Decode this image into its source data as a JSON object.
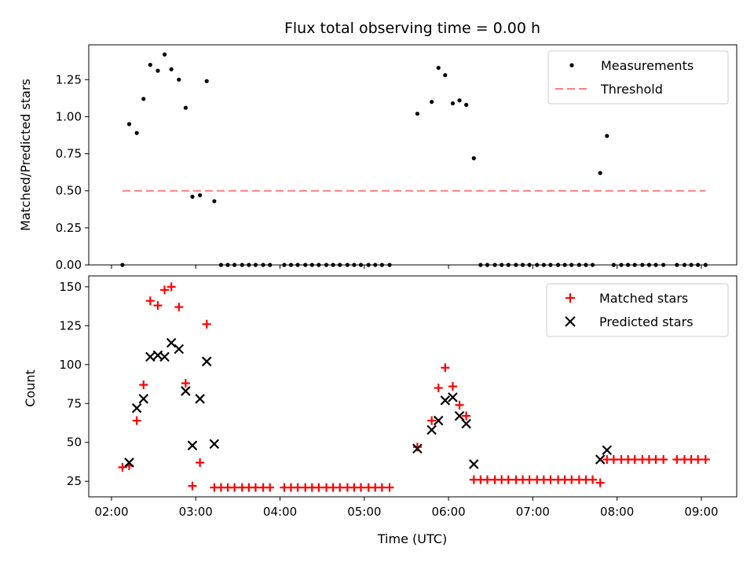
{
  "title": "Flux total observing time = 0.00 h",
  "xlabel": "Time (UTC)",
  "x_tick_labels": [
    "02:00",
    "03:00",
    "04:00",
    "05:00",
    "06:00",
    "07:00",
    "08:00",
    "09:00"
  ],
  "colors": {
    "matched": "#ff0000",
    "predicted": "#000000",
    "threshold": "#ff7f7f",
    "measurements": "#000000"
  },
  "chart_data": [
    {
      "type": "scatter",
      "title": "Flux total observing time = 0.00 h",
      "xlabel": "",
      "ylabel": "Matched/Predicted stars",
      "x_unit": "hours UTC",
      "xlim": [
        1.73,
        9.42
      ],
      "ylim": [
        0,
        1.485
      ],
      "y_tick_labels": [
        "0.00",
        "0.25",
        "0.50",
        "0.75",
        "1.00",
        "1.25"
      ],
      "legend": {
        "position": "top-right",
        "entries": [
          "Measurements",
          "Threshold"
        ]
      },
      "threshold": {
        "name": "Threshold",
        "x_range": [
          2.13,
          9.05
        ],
        "y": 0.5
      },
      "series": [
        {
          "name": "Measurements",
          "points": [
            [
              2.13,
              0.0
            ],
            [
              2.21,
              0.95
            ],
            [
              2.3,
              0.89
            ],
            [
              2.38,
              1.12
            ],
            [
              2.46,
              1.35
            ],
            [
              2.55,
              1.31
            ],
            [
              2.63,
              1.42
            ],
            [
              2.71,
              1.32
            ],
            [
              2.8,
              1.25
            ],
            [
              2.88,
              1.06
            ],
            [
              2.96,
              0.46
            ],
            [
              3.05,
              0.47
            ],
            [
              3.13,
              1.24
            ],
            [
              3.22,
              0.43
            ],
            [
              3.3,
              0.0
            ],
            [
              3.38,
              0.0
            ],
            [
              3.46,
              0.0
            ],
            [
              3.55,
              0.0
            ],
            [
              3.63,
              0.0
            ],
            [
              3.71,
              0.0
            ],
            [
              3.8,
              0.0
            ],
            [
              3.88,
              0.0
            ],
            [
              4.05,
              0.0
            ],
            [
              4.13,
              0.0
            ],
            [
              4.21,
              0.0
            ],
            [
              4.3,
              0.0
            ],
            [
              4.38,
              0.0
            ],
            [
              4.46,
              0.0
            ],
            [
              4.55,
              0.0
            ],
            [
              4.63,
              0.0
            ],
            [
              4.71,
              0.0
            ],
            [
              4.8,
              0.0
            ],
            [
              4.88,
              0.0
            ],
            [
              4.96,
              0.0
            ],
            [
              5.05,
              0.0
            ],
            [
              5.13,
              0.0
            ],
            [
              5.21,
              0.0
            ],
            [
              5.3,
              0.0
            ],
            [
              5.63,
              1.02
            ],
            [
              5.8,
              1.1
            ],
            [
              5.88,
              1.33
            ],
            [
              5.96,
              1.28
            ],
            [
              6.05,
              1.09
            ],
            [
              6.13,
              1.11
            ],
            [
              6.21,
              1.08
            ],
            [
              6.3,
              0.72
            ],
            [
              6.38,
              0.0
            ],
            [
              6.46,
              0.0
            ],
            [
              6.55,
              0.0
            ],
            [
              6.63,
              0.0
            ],
            [
              6.71,
              0.0
            ],
            [
              6.8,
              0.0
            ],
            [
              6.88,
              0.0
            ],
            [
              6.96,
              0.0
            ],
            [
              7.05,
              0.0
            ],
            [
              7.13,
              0.0
            ],
            [
              7.21,
              0.0
            ],
            [
              7.3,
              0.0
            ],
            [
              7.38,
              0.0
            ],
            [
              7.46,
              0.0
            ],
            [
              7.55,
              0.0
            ],
            [
              7.63,
              0.0
            ],
            [
              7.71,
              0.0
            ],
            [
              7.8,
              0.62
            ],
            [
              7.88,
              0.87
            ],
            [
              7.96,
              0.0
            ],
            [
              8.05,
              0.0
            ],
            [
              8.13,
              0.0
            ],
            [
              8.21,
              0.0
            ],
            [
              8.3,
              0.0
            ],
            [
              8.38,
              0.0
            ],
            [
              8.46,
              0.0
            ],
            [
              8.55,
              0.0
            ],
            [
              8.71,
              0.0
            ],
            [
              8.8,
              0.0
            ],
            [
              8.88,
              0.0
            ],
            [
              8.96,
              0.0
            ],
            [
              9.05,
              0.0
            ]
          ]
        }
      ]
    },
    {
      "type": "scatter",
      "title": "",
      "xlabel": "Time (UTC)",
      "ylabel": "Count",
      "x_unit": "hours UTC",
      "xlim": [
        1.73,
        9.42
      ],
      "ylim": [
        15,
        157
      ],
      "y_tick_labels": [
        "25",
        "50",
        "75",
        "100",
        "125",
        "150"
      ],
      "legend": {
        "position": "top-right",
        "entries": [
          "Matched stars",
          "Predicted stars"
        ]
      },
      "series": [
        {
          "name": "Matched stars",
          "marker": "plus",
          "points": [
            [
              2.13,
              34
            ],
            [
              2.21,
              35
            ],
            [
              2.3,
              64
            ],
            [
              2.38,
              87
            ],
            [
              2.46,
              141
            ],
            [
              2.55,
              138
            ],
            [
              2.63,
              148
            ],
            [
              2.71,
              150
            ],
            [
              2.8,
              137
            ],
            [
              2.88,
              88
            ],
            [
              2.96,
              22
            ],
            [
              3.05,
              37
            ],
            [
              3.13,
              126
            ],
            [
              3.22,
              21
            ],
            [
              3.3,
              21
            ],
            [
              3.38,
              21
            ],
            [
              3.46,
              21
            ],
            [
              3.55,
              21
            ],
            [
              3.63,
              21
            ],
            [
              3.71,
              21
            ],
            [
              3.8,
              21
            ],
            [
              3.88,
              21
            ],
            [
              4.05,
              21
            ],
            [
              4.13,
              21
            ],
            [
              4.21,
              21
            ],
            [
              4.3,
              21
            ],
            [
              4.38,
              21
            ],
            [
              4.46,
              21
            ],
            [
              4.55,
              21
            ],
            [
              4.63,
              21
            ],
            [
              4.71,
              21
            ],
            [
              4.8,
              21
            ],
            [
              4.88,
              21
            ],
            [
              4.96,
              21
            ],
            [
              5.05,
              21
            ],
            [
              5.13,
              21
            ],
            [
              5.21,
              21
            ],
            [
              5.3,
              21
            ],
            [
              5.63,
              47
            ],
            [
              5.8,
              64
            ],
            [
              5.88,
              85
            ],
            [
              5.96,
              98
            ],
            [
              6.05,
              86
            ],
            [
              6.13,
              74
            ],
            [
              6.21,
              67
            ],
            [
              6.3,
              26
            ],
            [
              6.38,
              26
            ],
            [
              6.46,
              26
            ],
            [
              6.55,
              26
            ],
            [
              6.63,
              26
            ],
            [
              6.71,
              26
            ],
            [
              6.8,
              26
            ],
            [
              6.88,
              26
            ],
            [
              6.96,
              26
            ],
            [
              7.05,
              26
            ],
            [
              7.13,
              26
            ],
            [
              7.21,
              26
            ],
            [
              7.3,
              26
            ],
            [
              7.38,
              26
            ],
            [
              7.46,
              26
            ],
            [
              7.55,
              26
            ],
            [
              7.63,
              26
            ],
            [
              7.71,
              26
            ],
            [
              7.8,
              24
            ],
            [
              7.88,
              39
            ],
            [
              7.96,
              39
            ],
            [
              8.05,
              39
            ],
            [
              8.13,
              39
            ],
            [
              8.21,
              39
            ],
            [
              8.3,
              39
            ],
            [
              8.38,
              39
            ],
            [
              8.46,
              39
            ],
            [
              8.55,
              39
            ],
            [
              8.71,
              39
            ],
            [
              8.8,
              39
            ],
            [
              8.88,
              39
            ],
            [
              8.96,
              39
            ],
            [
              9.05,
              39
            ]
          ]
        },
        {
          "name": "Predicted stars",
          "marker": "x",
          "points": [
            [
              2.21,
              37
            ],
            [
              2.3,
              72
            ],
            [
              2.38,
              78
            ],
            [
              2.46,
              105
            ],
            [
              2.55,
              106
            ],
            [
              2.63,
              105
            ],
            [
              2.71,
              114
            ],
            [
              2.8,
              110
            ],
            [
              2.88,
              83
            ],
            [
              2.96,
              48
            ],
            [
              3.05,
              78
            ],
            [
              3.13,
              102
            ],
            [
              3.22,
              49
            ],
            [
              5.63,
              46
            ],
            [
              5.8,
              58
            ],
            [
              5.88,
              64
            ],
            [
              5.96,
              77
            ],
            [
              6.05,
              79
            ],
            [
              6.13,
              67
            ],
            [
              6.21,
              62
            ],
            [
              6.3,
              36
            ],
            [
              7.8,
              39
            ],
            [
              7.88,
              45
            ]
          ]
        }
      ]
    }
  ]
}
